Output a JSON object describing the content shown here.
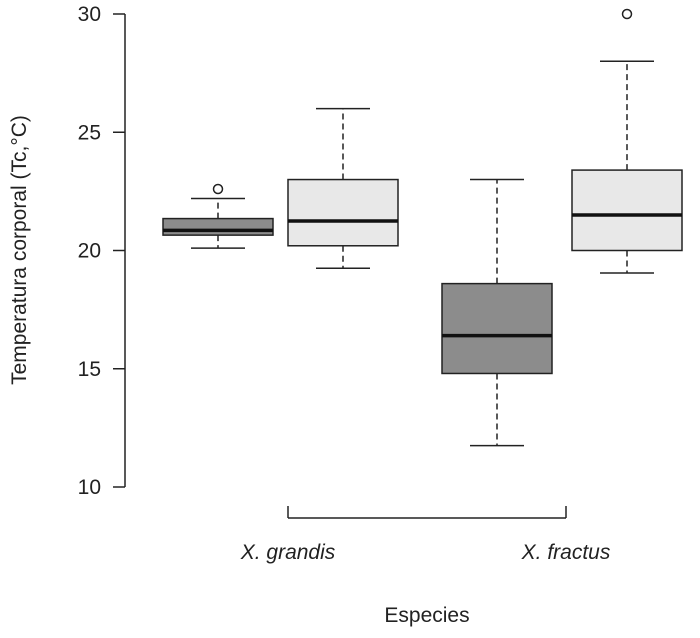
{
  "chart_data": {
    "type": "boxplot",
    "title": "",
    "xlabel": "Especies",
    "ylabel": "Temperatura corporal (Tc,°C)",
    "ylim": [
      10,
      30
    ],
    "yticks": [
      10,
      15,
      20,
      25,
      30
    ],
    "grid": false,
    "groups": [
      "X. grandis",
      "X. fractus"
    ],
    "boxes": [
      {
        "group": "X. grandis",
        "fill": "#8c8c8c",
        "whisker_low": 20.1,
        "q1": 20.65,
        "median": 20.85,
        "q3": 21.35,
        "whisker_high": 22.2,
        "outliers": [
          22.6
        ]
      },
      {
        "group": "X. grandis",
        "fill": "#e8e8e8",
        "whisker_low": 19.25,
        "q1": 20.2,
        "median": 21.25,
        "q3": 23.0,
        "whisker_high": 26.0,
        "outliers": []
      },
      {
        "group": "X. fractus",
        "fill": "#8c8c8c",
        "whisker_low": 11.75,
        "q1": 14.8,
        "median": 16.4,
        "q3": 18.6,
        "whisker_high": 23.0,
        "outliers": []
      },
      {
        "group": "X. fractus",
        "fill": "#e8e8e8",
        "whisker_low": 19.05,
        "q1": 20.0,
        "median": 21.5,
        "q3": 23.4,
        "whisker_high": 28.0,
        "outliers": [
          30.0
        ]
      }
    ]
  }
}
